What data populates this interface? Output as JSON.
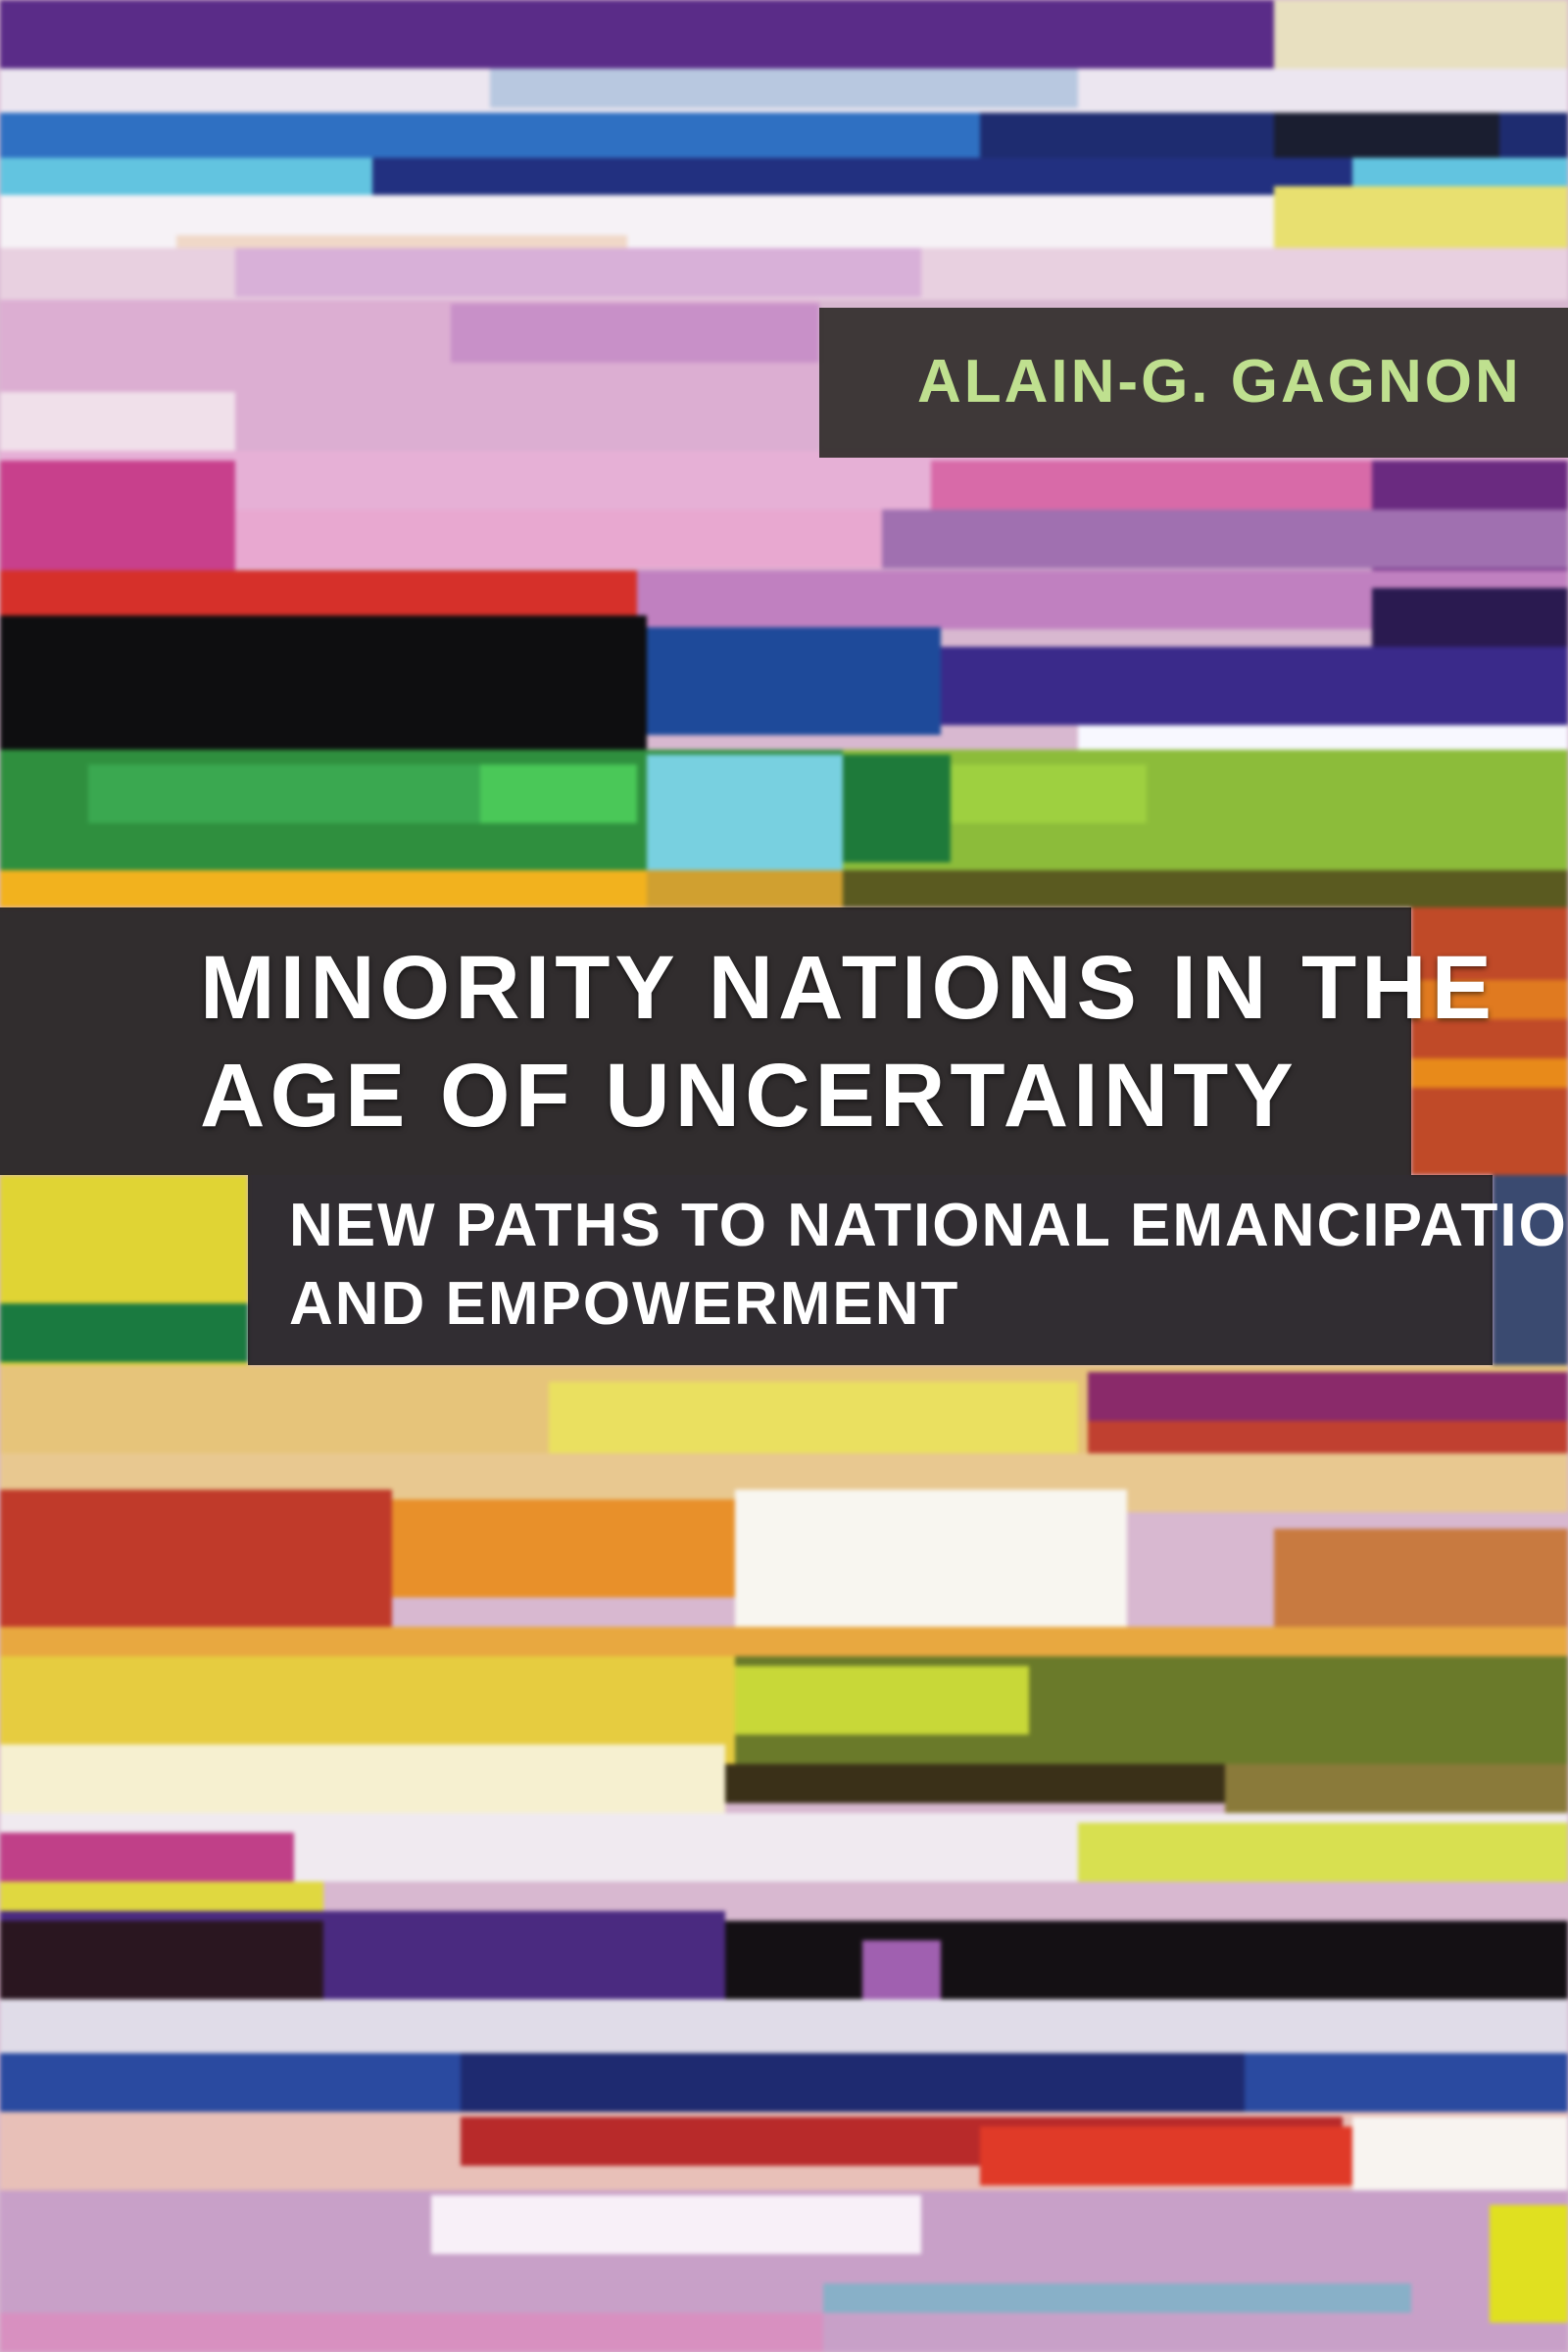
{
  "cover": {
    "author": "ALAIN-G. GAGNON",
    "title_line1": "MINORITY NATIONS IN THE",
    "title_line2": "AGE OF UNCERTAINTY",
    "subtitle_line1": "NEW PATHS TO NATIONAL EMANCIPATION",
    "subtitle_line2": "AND EMPOWERMENT"
  },
  "colors": {
    "author_text": "#bfe08f",
    "title_text": "#ffffff",
    "panel": "#1a1a18"
  }
}
